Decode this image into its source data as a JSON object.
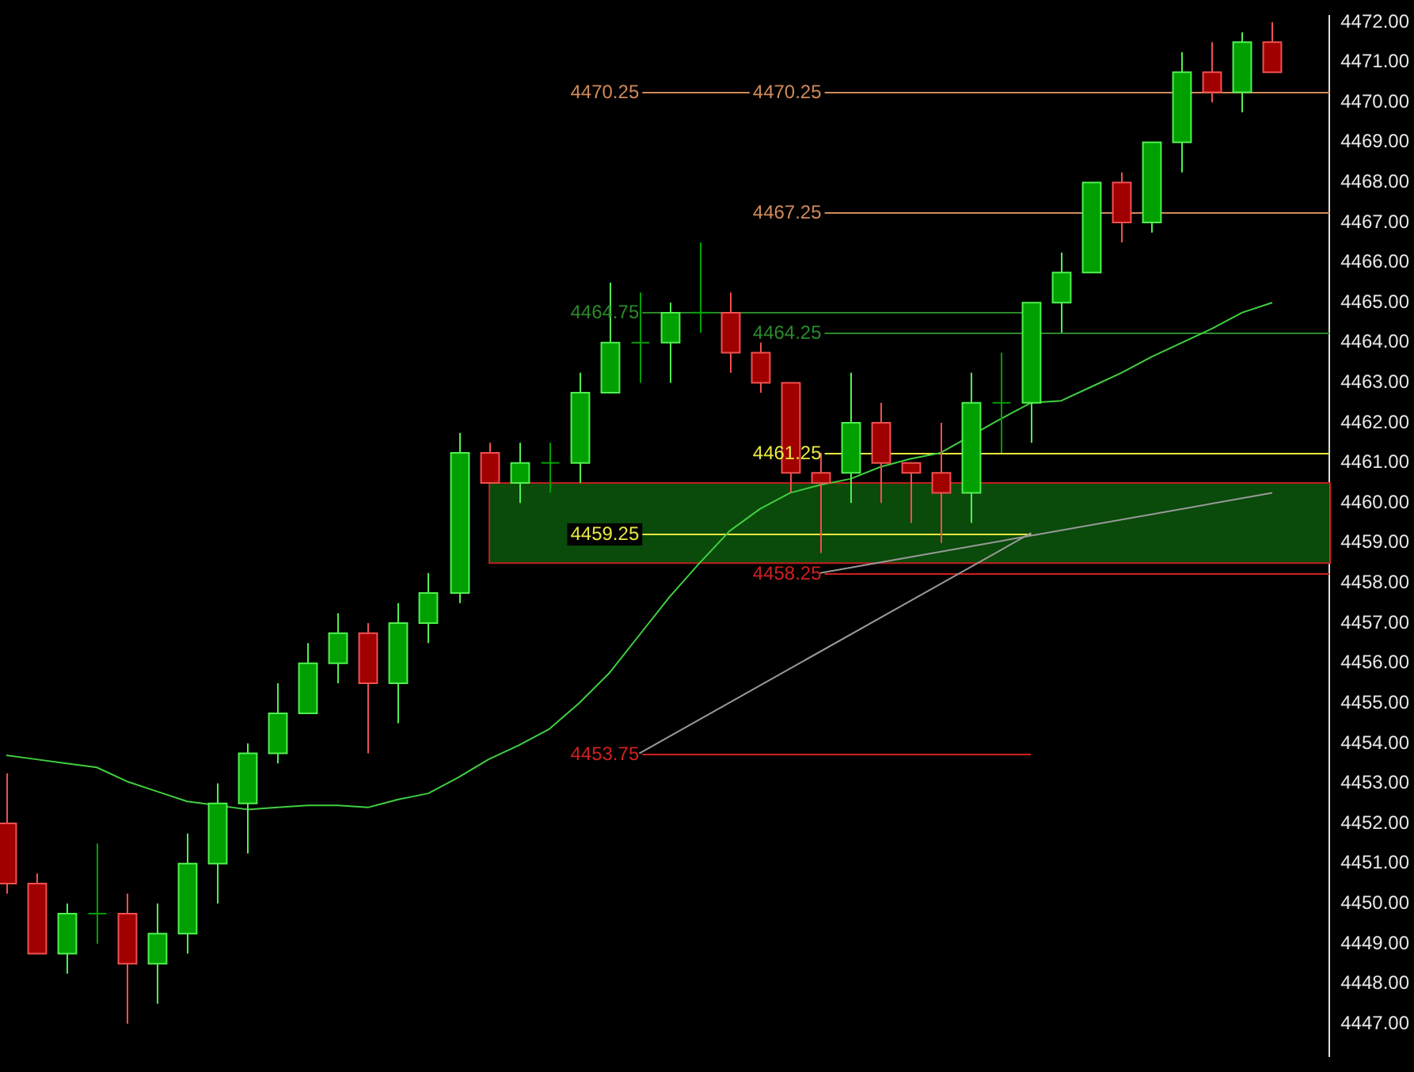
{
  "chart_data": {
    "type": "candlestick",
    "categories": [
      null,
      null,
      null,
      null,
      null,
      null,
      null,
      null,
      null,
      null,
      null,
      null,
      null,
      null,
      null,
      null,
      null,
      null,
      null,
      null,
      null,
      null,
      null,
      null,
      null,
      null,
      null,
      null,
      null,
      null,
      null,
      null,
      null,
      null,
      null,
      null,
      null,
      null,
      null,
      null,
      null,
      null,
      null
    ],
    "ohlc": [
      [
        4452.0,
        4453.25,
        4450.25,
        4450.5
      ],
      [
        4450.5,
        4450.75,
        4448.75,
        4448.75
      ],
      [
        4448.75,
        4450.0,
        4448.25,
        4449.75
      ],
      [
        4449.75,
        4451.5,
        4449.0,
        4449.75
      ],
      [
        4449.75,
        4450.25,
        4447.0,
        4448.5
      ],
      [
        4448.5,
        4450.0,
        4447.5,
        4449.25
      ],
      [
        4449.25,
        4451.75,
        4448.75,
        4451.0
      ],
      [
        4451.0,
        4453.0,
        4450.0,
        4452.5
      ],
      [
        4452.5,
        4454.0,
        4451.25,
        4453.75
      ],
      [
        4453.75,
        4455.5,
        4453.5,
        4454.75
      ],
      [
        4454.75,
        4456.5,
        4454.75,
        4456.0
      ],
      [
        4456.0,
        4457.25,
        4455.5,
        4456.75
      ],
      [
        4456.75,
        4457.0,
        4453.75,
        4455.5
      ],
      [
        4455.5,
        4457.5,
        4454.5,
        4457.0
      ],
      [
        4457.0,
        4458.25,
        4456.5,
        4457.75
      ],
      [
        4457.75,
        4461.75,
        4457.5,
        4461.25
      ],
      [
        4461.25,
        4461.5,
        4460.5,
        4460.5
      ],
      [
        4460.5,
        4461.5,
        4460.0,
        4461.0
      ],
      [
        4461.0,
        4461.5,
        4460.25,
        4461.0
      ],
      [
        4461.0,
        4463.25,
        4460.5,
        4462.75
      ],
      [
        4462.75,
        4465.5,
        4462.75,
        4464.0
      ],
      [
        4464.0,
        4465.25,
        4463.0,
        4464.0
      ],
      [
        4464.0,
        4465.0,
        4463.0,
        4464.75
      ],
      [
        4464.75,
        4466.5,
        4464.25,
        4464.75
      ],
      [
        4464.75,
        4465.25,
        4463.25,
        4463.75
      ],
      [
        4463.75,
        4464.0,
        4462.75,
        4463.0
      ],
      [
        4463.0,
        4463.0,
        4460.25,
        4460.75
      ],
      [
        4460.75,
        4461.25,
        4458.75,
        4460.5
      ],
      [
        4460.75,
        4463.25,
        4460.0,
        4462.0
      ],
      [
        4462.0,
        4462.5,
        4460.0,
        4461.0
      ],
      [
        4461.0,
        4461.0,
        4459.5,
        4460.75
      ],
      [
        4460.75,
        4462.0,
        4459.0,
        4460.25
      ],
      [
        4460.25,
        4463.25,
        4459.5,
        4462.5
      ],
      [
        4462.5,
        4463.75,
        4461.25,
        4462.5
      ],
      [
        4462.5,
        4465.0,
        4461.5,
        4465.0
      ],
      [
        4465.0,
        4466.25,
        4464.25,
        4465.75
      ],
      [
        4465.75,
        4468.0,
        4465.75,
        4468.0
      ],
      [
        4468.0,
        4468.25,
        4466.5,
        4467.0
      ],
      [
        4467.0,
        4469.0,
        4466.75,
        4469.0
      ],
      [
        4469.0,
        4471.25,
        4468.25,
        4470.75
      ],
      [
        4470.75,
        4471.5,
        4470.0,
        4470.25
      ],
      [
        4470.25,
        4471.75,
        4469.75,
        4471.5
      ],
      [
        4471.5,
        4472.0,
        4470.75,
        4470.75
      ]
    ],
    "colors": [
      "#a00000",
      "#a00000",
      "#00a000",
      "#00a000",
      "#a00000",
      "#00a000",
      "#00a000",
      "#00a000",
      "#00a000",
      "#00a000",
      "#00a000",
      "#00a000",
      "#a00000",
      "#00a000",
      "#00a000",
      "#00a000",
      "#a00000",
      "#00a000",
      "#00a000",
      "#00a000",
      "#00a000",
      "#00a000",
      "#00a000",
      "#00a000",
      "#a00000",
      "#a00000",
      "#a00000",
      "#a00000",
      "#00a000",
      "#a00000",
      "#a00000",
      "#a00000",
      "#00a000",
      "#00a000",
      "#00a000",
      "#00a000",
      "#00a000",
      "#a00000",
      "#00a000",
      "#00a000",
      "#a00000",
      "#00a000",
      "#a00000"
    ],
    "series": [
      {
        "type": "line",
        "color": "#40d040",
        "values": [
          4453.7,
          4453.6,
          4453.5,
          4453.4,
          4453.05,
          4452.8,
          4452.55,
          null,
          4452.35,
          4452.4,
          4452.45,
          4452.45,
          4452.4,
          4452.6,
          4452.75,
          4453.15,
          4453.6,
          4453.95,
          4454.35,
          4455.0,
          4455.75,
          4456.7,
          4457.65,
          4458.5,
          4459.3,
          4459.85,
          4460.25,
          4460.45,
          4460.6,
          4460.9,
          4461.1,
          4461.25,
          null,
          4462.1,
          4462.5,
          4462.55,
          4462.9,
          4463.25,
          4463.65,
          4464.0,
          4464.35,
          4464.75,
          4465.0
        ]
      },
      {
        "type": "line",
        "color": "#9a9a9a",
        "values": [
          null,
          null,
          null,
          null,
          null,
          null,
          null,
          null,
          null,
          null,
          null,
          null,
          null,
          null,
          null,
          null,
          null,
          null,
          null,
          null,
          null,
          4453.75,
          null,
          null,
          null,
          null,
          null,
          null,
          null,
          null,
          null,
          null,
          null,
          null,
          4459.25,
          null,
          null,
          null,
          null,
          null,
          null,
          null,
          null
        ]
      },
      {
        "type": "line",
        "color": "#9a9a9a",
        "values": [
          null,
          null,
          null,
          null,
          null,
          null,
          null,
          null,
          null,
          null,
          null,
          null,
          null,
          null,
          null,
          null,
          null,
          null,
          null,
          null,
          null,
          null,
          null,
          null,
          null,
          null,
          null,
          4458.25,
          null,
          null,
          null,
          null,
          null,
          null,
          null,
          null,
          null,
          null,
          null,
          null,
          null,
          null,
          4460.25
        ]
      }
    ],
    "ylim": [
      4446.2,
      4472.15
    ],
    "yticks": [
      {
        "value": 4447,
        "label": "4447.00"
      },
      {
        "value": 4448,
        "label": "4448.00"
      },
      {
        "value": 4449,
        "label": "4449.00"
      },
      {
        "value": 4450,
        "label": "4450.00"
      },
      {
        "value": 4451,
        "label": "4451.00"
      },
      {
        "value": 4452,
        "label": "4452.00"
      },
      {
        "value": 4453,
        "label": "4453.00"
      },
      {
        "value": 4454,
        "label": "4454.00"
      },
      {
        "value": 4455,
        "label": "4455.00"
      },
      {
        "value": 4456,
        "label": "4456.00"
      },
      {
        "value": 4457,
        "label": "4457.00"
      },
      {
        "value": 4458,
        "label": "4458.00"
      },
      {
        "value": 4459,
        "label": "4459.00"
      },
      {
        "value": 4460,
        "label": "4460.00"
      },
      {
        "value": 4461,
        "label": "4461.00"
      },
      {
        "value": 4462,
        "label": "4462.00"
      },
      {
        "value": 4463,
        "label": "4463.00"
      },
      {
        "value": 4464,
        "label": "4464.00"
      },
      {
        "value": 4465,
        "label": "4465.00"
      },
      {
        "value": 4466,
        "label": "4466.00"
      },
      {
        "value": 4467,
        "label": "4467.00"
      },
      {
        "value": 4468,
        "label": "4468.00"
      },
      {
        "value": 4469,
        "label": "4469.00"
      },
      {
        "value": 4470,
        "label": "4470.00"
      },
      {
        "value": 4471,
        "label": "4471.00"
      },
      {
        "value": 4472,
        "label": "4472.00"
      }
    ],
    "ref_lines": [
      {
        "axis": "y",
        "value": 4470.25,
        "label": "4470.25",
        "color": "#d08a5a"
      },
      {
        "axis": "y",
        "value": 4467.25,
        "label": "4467.25",
        "color": "#d08a5a"
      },
      {
        "axis": "y",
        "value": 4464.75,
        "label": "4464.75",
        "color": "#2a8a2a"
      },
      {
        "axis": "y",
        "value": 4464.25,
        "label": "4464.25",
        "color": "#2a8a2a"
      },
      {
        "axis": "y",
        "value": 4461.25,
        "label": "4461.25",
        "color": "#e8e840"
      },
      {
        "axis": "y",
        "value": 4459.25,
        "label": "4459.25",
        "color": "#e8e840"
      },
      {
        "axis": "y",
        "value": 4458.25,
        "label": "4458.25",
        "color": "#d02020"
      },
      {
        "axis": "y",
        "value": 4453.75,
        "label": "4453.75",
        "color": "#d02020"
      }
    ],
    "annotations": [
      {
        "text": "4470.25",
        "y": 4470.25
      }
    ],
    "bands": [
      {
        "axis": "y",
        "from": 4458.5,
        "to": 4460.5,
        "color": "#0a4a0a"
      }
    ],
    "grid": false,
    "legend": false
  }
}
